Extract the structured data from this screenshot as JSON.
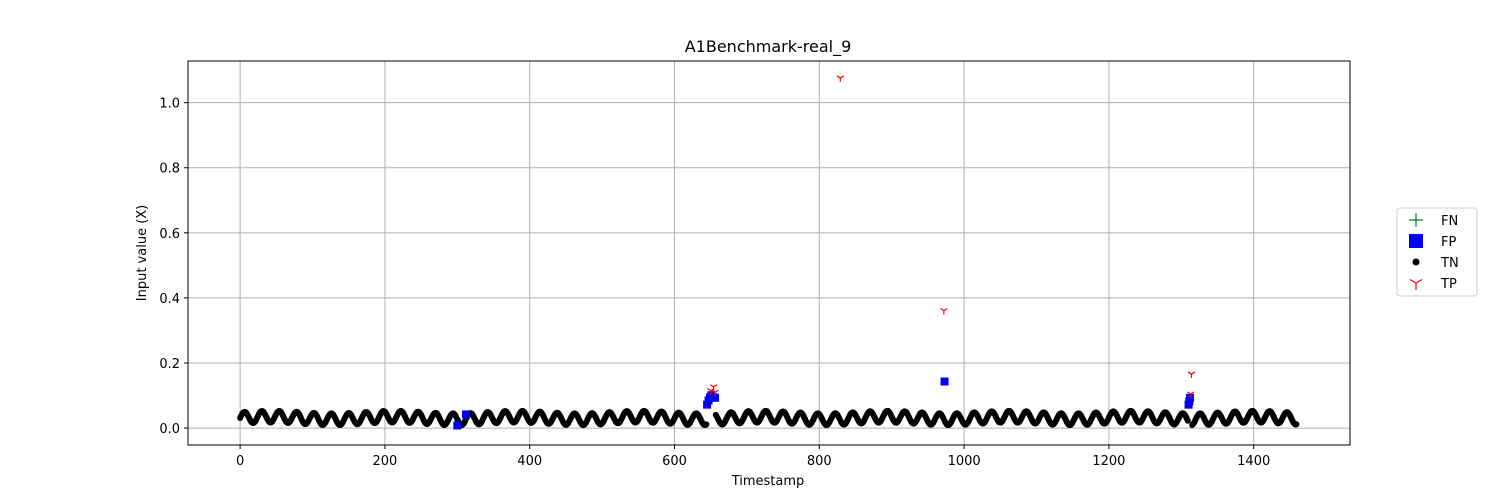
{
  "chart_data": {
    "type": "scatter",
    "title": "A1Benchmark-real_9",
    "xlabel": "Timestamp",
    "ylabel": "Input value (X)",
    "xlim": [
      -72,
      1533
    ],
    "ylim": [
      -0.052,
      1.128
    ],
    "xticks": [
      0,
      200,
      400,
      600,
      800,
      1000,
      1200,
      1400
    ],
    "yticks": [
      0.0,
      0.2,
      0.4,
      0.6,
      0.8,
      1.0
    ],
    "ytick_labels": [
      "0.0",
      "0.2",
      "0.4",
      "0.6",
      "0.8",
      "1.0"
    ],
    "grid": true,
    "legend_position": "right",
    "tn_series": {
      "name": "TN",
      "color": "#000000",
      "marker": "circle",
      "n": 1460,
      "base": 0.031,
      "amplitude": 0.018,
      "period": 24,
      "slow_amplitude": 0.004,
      "slow_period": 170,
      "gaps": [
        299,
        312,
        645,
        646,
        647,
        648,
        649,
        650,
        651,
        652,
        653,
        654,
        655,
        656,
        829,
        972,
        1310,
        1311,
        1312,
        1313,
        1314
      ]
    },
    "series": [
      {
        "name": "FN",
        "color": "#008000",
        "marker": "plus",
        "points": []
      },
      {
        "name": "FP",
        "color": "#0000ff",
        "marker": "square",
        "points": [
          {
            "x": 300,
            "y": 0.008
          },
          {
            "x": 312,
            "y": 0.042
          },
          {
            "x": 645,
            "y": 0.072
          },
          {
            "x": 647,
            "y": 0.085
          },
          {
            "x": 649,
            "y": 0.094
          },
          {
            "x": 651,
            "y": 0.101
          },
          {
            "x": 653,
            "y": 0.095
          },
          {
            "x": 656,
            "y": 0.093
          },
          {
            "x": 973,
            "y": 0.143
          },
          {
            "x": 1310,
            "y": 0.072
          },
          {
            "x": 1311,
            "y": 0.082
          },
          {
            "x": 1312,
            "y": 0.093
          }
        ]
      },
      {
        "name": "TN",
        "color": "#000000",
        "marker": "circle",
        "points": []
      },
      {
        "name": "TP",
        "color": "#ff0000",
        "marker": "tri_down",
        "points": [
          {
            "x": 650,
            "y": 0.115
          },
          {
            "x": 654,
            "y": 0.127
          },
          {
            "x": 656,
            "y": 0.11
          },
          {
            "x": 829,
            "y": 1.076
          },
          {
            "x": 972,
            "y": 0.361
          },
          {
            "x": 1313,
            "y": 0.105
          },
          {
            "x": 1314,
            "y": 0.166
          }
        ]
      }
    ]
  }
}
